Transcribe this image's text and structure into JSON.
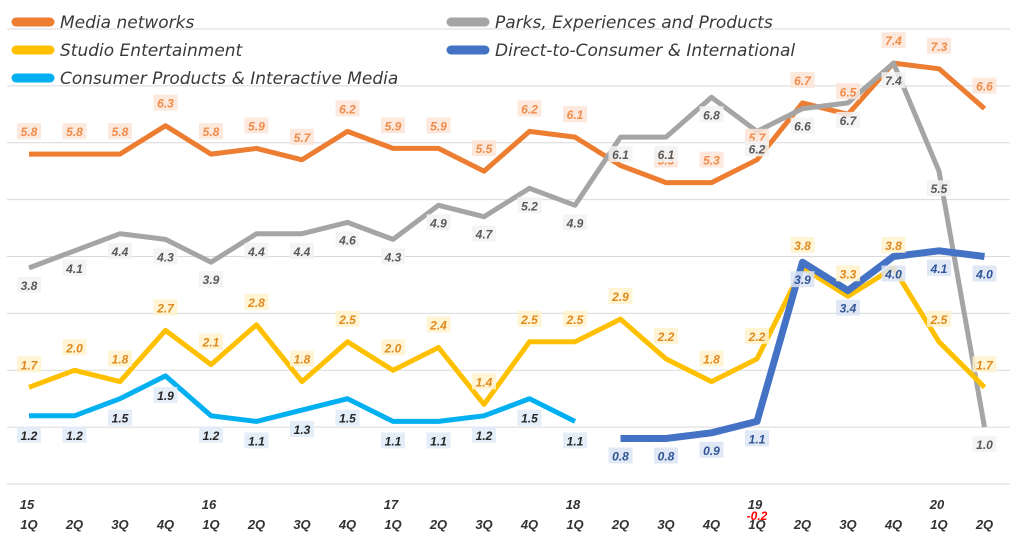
{
  "chart_data": {
    "type": "line",
    "title": "",
    "xlabel": "",
    "ylabel": "",
    "ylim": [
      0,
      8
    ],
    "grid": true,
    "legend_position": "top",
    "categories": [
      "15 1Q",
      "2Q",
      "3Q",
      "4Q",
      "16 1Q",
      "2Q",
      "3Q",
      "4Q",
      "17 1Q",
      "2Q",
      "3Q",
      "4Q",
      "18 1Q",
      "2Q",
      "3Q",
      "4Q",
      "19 1Q",
      "2Q",
      "3Q",
      "4Q",
      "20 1Q",
      "2Q"
    ],
    "tick_labels": {
      "years": [
        "15",
        "",
        "",
        "",
        "16",
        "",
        "",
        "",
        "17",
        "",
        "",
        "",
        "18",
        "",
        "",
        "",
        "19",
        "",
        "",
        "",
        "20",
        ""
      ],
      "quarters": [
        "1Q",
        "2Q",
        "3Q",
        "4Q",
        "1Q",
        "2Q",
        "3Q",
        "4Q",
        "1Q",
        "2Q",
        "3Q",
        "4Q",
        "1Q",
        "2Q",
        "3Q",
        "4Q",
        "1Q",
        "2Q",
        "3Q",
        "4Q",
        "1Q",
        "2Q"
      ]
    },
    "series": [
      {
        "name": "Media networks",
        "color": "#ED7D31",
        "values": [
          5.8,
          5.8,
          5.8,
          6.3,
          5.8,
          5.9,
          5.7,
          6.2,
          5.9,
          5.9,
          5.5,
          6.2,
          6.1,
          5.6,
          5.3,
          5.3,
          5.7,
          6.7,
          6.5,
          7.4,
          7.3,
          6.6
        ],
        "labels": [
          "5.8",
          "5.8",
          "5.8",
          "6.3",
          "5.8",
          "5.9",
          "5.7",
          "6.2",
          "5.9",
          "5.9",
          "5.5",
          "6.2",
          "6.1",
          "",
          "5.3",
          "5.3",
          "5.7",
          "6.7",
          "6.5",
          "7.4",
          "7.3",
          "6.6"
        ]
      },
      {
        "name": "Parks, Experiences and Products",
        "color": "#A5A5A5",
        "values": [
          3.8,
          4.1,
          4.4,
          4.3,
          3.9,
          4.4,
          4.4,
          4.6,
          4.3,
          4.9,
          4.7,
          5.2,
          4.9,
          6.1,
          6.1,
          6.8,
          6.2,
          6.6,
          6.7,
          7.4,
          5.5,
          1.0
        ],
        "labels": [
          "3.8",
          "4.1",
          "4.4",
          "4.3",
          "3.9",
          "4.4",
          "4.4",
          "4.6",
          "4.3",
          "4.9",
          "4.7",
          "5.2",
          "4.9",
          "6.1",
          "6.1",
          "6.8",
          "6.2",
          "6.6",
          "6.7",
          "7.4",
          "5.5",
          "1.0"
        ]
      },
      {
        "name": "Studio Entertainment",
        "color": "#FFC000",
        "values": [
          1.7,
          2.0,
          1.8,
          2.7,
          2.1,
          2.8,
          1.8,
          2.5,
          2.0,
          2.4,
          1.4,
          2.5,
          2.5,
          2.9,
          2.2,
          1.8,
          2.2,
          3.8,
          3.3,
          3.8,
          2.5,
          1.7
        ],
        "labels": [
          "1.7",
          "2.0",
          "1.8",
          "2.7",
          "2.1",
          "2.8",
          "1.8",
          "2.5",
          "2.0",
          "2.4",
          "1.4",
          "2.5",
          "2.5",
          "2.9",
          "2.2",
          "1.8",
          "2.2",
          "3.8",
          "3.3",
          "3.8",
          "2.5",
          "1.7"
        ]
      },
      {
        "name": "Direct-to-Consumer & International",
        "color": "#4472C4",
        "values": [
          null,
          null,
          null,
          null,
          null,
          null,
          null,
          null,
          null,
          null,
          null,
          null,
          null,
          0.8,
          0.8,
          0.9,
          1.1,
          3.9,
          3.4,
          4.0,
          4.1,
          4.0
        ],
        "labels": [
          "",
          "",
          "",
          "",
          "",
          "",
          "",
          "",
          "",
          "",
          "",
          "",
          "",
          "0.8",
          "0.8",
          "0.9",
          "1.1",
          "3.9",
          "3.4",
          "4.0",
          "4.1",
          "4.0"
        ]
      },
      {
        "name": "Consumer Products & Interactive Media",
        "color": "#00B0F0",
        "values": [
          1.2,
          1.2,
          1.5,
          1.9,
          1.2,
          1.1,
          1.3,
          1.5,
          1.1,
          1.1,
          1.2,
          1.5,
          1.1,
          null,
          null,
          null,
          null,
          null,
          null,
          null,
          null,
          null
        ],
        "labels": [
          "1.2",
          "1.2",
          "1.5",
          "1.9",
          "1.2",
          "1.1",
          "1.3",
          "1.5",
          "1.1",
          "1.1",
          "1.2",
          "1.5",
          "1.1",
          "",
          "",
          "",
          "",
          "",
          "",
          "",
          "",
          ""
        ]
      }
    ],
    "annotations": [
      {
        "text": "-0.2",
        "color": "#FF0000",
        "category": "19 1Q"
      }
    ]
  }
}
